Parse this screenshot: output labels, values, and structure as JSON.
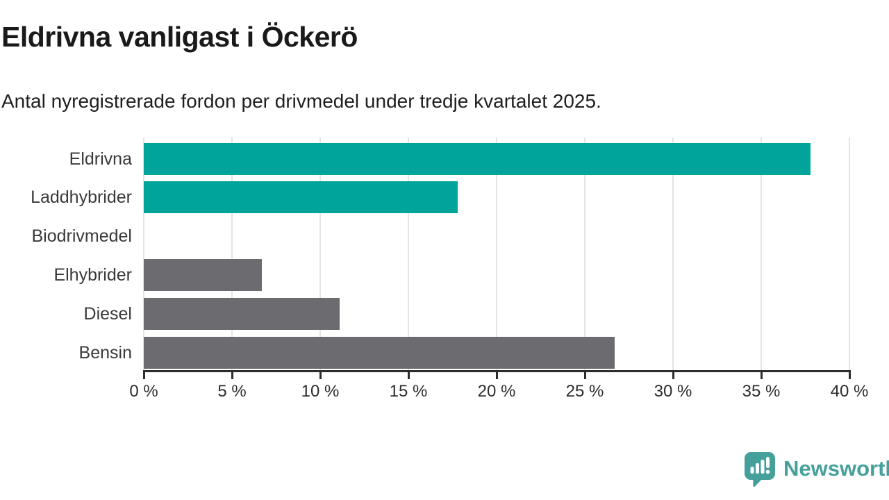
{
  "header": {
    "title": "Eldrivna vanligast i Öckerö",
    "subtitle": "Antal nyregistrerade fordon per drivmedel under tredje kvartalet 2025."
  },
  "chart_data": {
    "type": "bar",
    "orientation": "horizontal",
    "categories": [
      "Eldrivna",
      "Laddhybrider",
      "Biodrivmedel",
      "Elhybrider",
      "Diesel",
      "Bensin"
    ],
    "values": [
      37.8,
      17.8,
      0,
      6.7,
      11.1,
      26.7
    ],
    "bar_colors": [
      "#00a49a",
      "#00a49a",
      "#6b6b70",
      "#6b6b70",
      "#6b6b70",
      "#6b6b70"
    ],
    "xlim": [
      0,
      40
    ],
    "x_ticks": [
      0,
      5,
      10,
      15,
      20,
      25,
      30,
      35,
      40
    ],
    "x_tick_labels": [
      "0 %",
      "5 %",
      "10 %",
      "15 %",
      "20 %",
      "25 %",
      "30 %",
      "35 %",
      "40 %"
    ],
    "grid": true,
    "legend": "none",
    "title": "Eldrivna vanligast i Öckerö",
    "xlabel": "",
    "ylabel": ""
  },
  "branding": {
    "logo_text": "Newsworthy",
    "logo_icon": "bar-chart-speech-bubble-icon",
    "logo_color": "#45a09c"
  },
  "colors": {
    "accent_teal": "#00a49a",
    "neutral_gray": "#6b6b70",
    "gridline": "#e4e4e4",
    "axis": "#2d2d2d",
    "text": "#1a1a1a"
  }
}
